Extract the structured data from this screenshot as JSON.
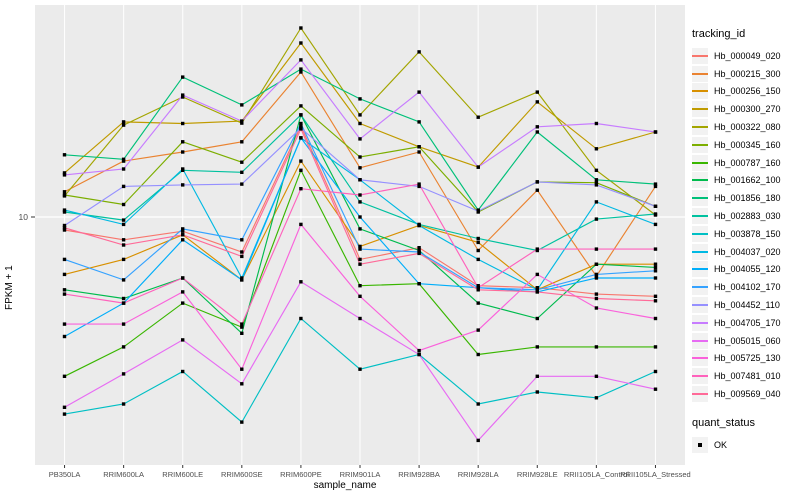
{
  "colors": {
    "panel_bg": "#EBEBEB",
    "gridline": "#FFFFFF",
    "point": "#000000",
    "tick_text": "#4D4D4D",
    "tick_mark": "#333333"
  },
  "axes": {
    "x_title": "sample_name",
    "y_title": "FPKM + 1",
    "y_tick_label": "10"
  },
  "legend": {
    "tracking_title": "tracking_id",
    "quant_title": "quant_status",
    "quant_ok_label": "OK"
  },
  "chart_data": {
    "type": "line",
    "title": "",
    "xlabel": "sample_name",
    "ylabel": "FPKM + 1",
    "yscale": "log10",
    "y_ticks": [
      10
    ],
    "grid": "major-only",
    "legend_position": "right",
    "point_marker": "small black square (quant_status OK)",
    "x": [
      "PB350LA",
      "RRIM600LA",
      "RRIM600LE",
      "RRIM600SE",
      "RRIM600PE",
      "RRIM901LA",
      "RRIM928BA",
      "RRIM928LA",
      "RRIM928LE",
      "RRII105LA_Control",
      "RRII105LA_Stressed"
    ],
    "series": [
      {
        "name": "Hb_000049_020",
        "color": "#F8766D",
        "values": [
          8.8,
          8.0,
          8.7,
          7.1,
          24.4,
          6.6,
          7.4,
          5.1,
          5.0,
          4.7,
          4.6
        ]
      },
      {
        "name": "Hb_000215_300",
        "color": "#EA8331",
        "values": [
          12.8,
          17.3,
          18.9,
          20.9,
          41.4,
          16.2,
          18.9,
          7.2,
          13.0,
          5.6,
          13.5
        ]
      },
      {
        "name": "Hb_000256_150",
        "color": "#D89000",
        "values": [
          5.7,
          6.6,
          8.4,
          5.4,
          17.3,
          7.5,
          9.2,
          7.8,
          4.9,
          6.3,
          6.3
        ]
      },
      {
        "name": "Hb_000300_270",
        "color": "#C09B00",
        "values": [
          15.4,
          25.4,
          25.0,
          25.6,
          55.0,
          25.0,
          19.9,
          16.3,
          30.9,
          19.5,
          23.0
        ]
      },
      {
        "name": "Hb_000322_080",
        "color": "#A3A500",
        "values": [
          12.3,
          24.6,
          32.4,
          25.1,
          63.7,
          27.2,
          50.4,
          26.6,
          34.0,
          15.8,
          10.2
        ]
      },
      {
        "name": "Hb_000345_160",
        "color": "#7CAE00",
        "values": [
          12.4,
          11.3,
          20.9,
          17.1,
          29.7,
          18.0,
          19.9,
          10.5,
          14.1,
          14.0,
          11.1
        ]
      },
      {
        "name": "Hb_000787_160",
        "color": "#39B600",
        "values": [
          2.1,
          2.8,
          4.3,
          3.4,
          15.8,
          5.1,
          5.2,
          2.6,
          2.8,
          2.8,
          2.8
        ]
      },
      {
        "name": "Hb_001662_100",
        "color": "#00BB4E",
        "values": [
          4.9,
          4.5,
          5.5,
          3.2,
          27.2,
          8.9,
          7.2,
          4.3,
          3.7,
          6.3,
          6.1
        ]
      },
      {
        "name": "Hb_001856_180",
        "color": "#00C079",
        "values": [
          18.4,
          17.6,
          39.4,
          30.0,
          42.6,
          31.8,
          25.4,
          10.7,
          23.0,
          14.4,
          13.8
        ]
      },
      {
        "name": "Hb_002883_030",
        "color": "#00C19F",
        "values": [
          10.5,
          9.7,
          15.8,
          15.5,
          27.2,
          11.6,
          9.3,
          8.1,
          7.2,
          9.8,
          10.3
        ]
      },
      {
        "name": "Hb_003878_150",
        "color": "#00BFC4",
        "values": [
          1.45,
          1.6,
          2.2,
          1.34,
          3.7,
          2.25,
          2.6,
          1.6,
          1.8,
          1.7,
          2.2
        ]
      },
      {
        "name": "Hb_004037_020",
        "color": "#00B9E3",
        "values": [
          10.7,
          9.3,
          16.0,
          5.5,
          21.7,
          14.4,
          9.2,
          6.6,
          4.9,
          11.6,
          9.3
        ]
      },
      {
        "name": "Hb_004055_120",
        "color": "#00AEFA",
        "values": [
          3.1,
          4.3,
          8.0,
          5.4,
          21.7,
          10.0,
          5.2,
          5.0,
          4.8,
          5.5,
          5.5
        ]
      },
      {
        "name": "Hb_004102_170",
        "color": "#35A2FF",
        "values": [
          6.6,
          5.4,
          8.9,
          8.0,
          25.0,
          7.3,
          7.1,
          5.0,
          4.9,
          5.7,
          5.9
        ]
      },
      {
        "name": "Hb_004452_110",
        "color": "#9590FF",
        "values": [
          9.2,
          13.5,
          13.7,
          13.8,
          23.9,
          14.4,
          13.5,
          10.6,
          14.1,
          13.7,
          11.1
        ]
      },
      {
        "name": "Hb_004705_170",
        "color": "#C77CFF",
        "values": [
          15.1,
          16.0,
          33.0,
          25.6,
          46.6,
          21.5,
          34.0,
          16.3,
          24.2,
          25.0,
          23.0
        ]
      },
      {
        "name": "Hb_005015_060",
        "color": "#E76BF3",
        "values": [
          1.55,
          2.15,
          3.0,
          1.95,
          5.3,
          3.7,
          2.6,
          1.12,
          2.1,
          2.1,
          1.85
        ]
      },
      {
        "name": "Hb_005725_130",
        "color": "#FA62DB",
        "values": [
          3.5,
          3.5,
          4.8,
          2.25,
          9.3,
          4.6,
          2.7,
          3.3,
          5.7,
          4.1,
          3.7
        ]
      },
      {
        "name": "Hb_007481_010",
        "color": "#FF62BC",
        "values": [
          4.7,
          4.3,
          5.5,
          3.5,
          13.2,
          12.4,
          13.8,
          5.0,
          7.3,
          7.3,
          7.3
        ]
      },
      {
        "name": "Hb_009569_040",
        "color": "#FF6A98",
        "values": [
          9.0,
          7.6,
          8.4,
          6.8,
          23.7,
          6.3,
          7.0,
          4.9,
          4.8,
          4.5,
          4.4
        ]
      }
    ]
  }
}
